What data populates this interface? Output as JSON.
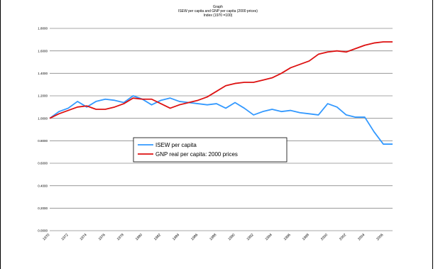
{
  "chart_data": {
    "type": "line",
    "title_lines": [
      "Graph",
      "ISEW per capita and GNP per capita (2000 prices)",
      "Index (1970 =100)"
    ],
    "x": [
      1970,
      1971,
      1972,
      1973,
      1974,
      1975,
      1976,
      1977,
      1978,
      1979,
      1980,
      1981,
      1982,
      1983,
      1984,
      1985,
      1986,
      1987,
      1988,
      1989,
      1990,
      1991,
      1992,
      1993,
      1994,
      1995,
      1996,
      1997,
      1998,
      1999,
      2000,
      2001,
      2002,
      2003,
      2004,
      2005,
      2006,
      2007
    ],
    "x_tick_labels": [
      "1970",
      "1972",
      "1974",
      "1976",
      "1978",
      "1980",
      "1982",
      "1984",
      "1986",
      "1988",
      "1990",
      "1992",
      "1994",
      "1996",
      "1998",
      "2000",
      "2002",
      "2004",
      "2006"
    ],
    "y_tick_labels": [
      "0.0000",
      "0.2000",
      "0.4000",
      "0.6000",
      "0.8000",
      "1.0000",
      "1.2000",
      "1.4000",
      "1.6000",
      "1.8000"
    ],
    "ylim": [
      0,
      1.8
    ],
    "grid": true,
    "legend_placement": "center-left",
    "series": [
      {
        "name": "ISEW per capita",
        "color": "#3399ff",
        "values": [
          1.0,
          1.06,
          1.09,
          1.15,
          1.1,
          1.15,
          1.17,
          1.16,
          1.14,
          1.2,
          1.17,
          1.12,
          1.16,
          1.18,
          1.15,
          1.14,
          1.13,
          1.12,
          1.13,
          1.09,
          1.14,
          1.09,
          1.03,
          1.06,
          1.08,
          1.06,
          1.07,
          1.05,
          1.04,
          1.03,
          1.13,
          1.1,
          1.03,
          1.01,
          1.01,
          0.88,
          0.77,
          0.77
        ]
      },
      {
        "name": "GNP real per capita: 2000 prices",
        "color": "#dd1111",
        "values": [
          1.0,
          1.04,
          1.07,
          1.1,
          1.11,
          1.08,
          1.08,
          1.1,
          1.13,
          1.18,
          1.17,
          1.17,
          1.13,
          1.09,
          1.12,
          1.14,
          1.16,
          1.19,
          1.24,
          1.29,
          1.31,
          1.32,
          1.32,
          1.34,
          1.36,
          1.4,
          1.45,
          1.48,
          1.51,
          1.57,
          1.59,
          1.6,
          1.59,
          1.62,
          1.65,
          1.67,
          1.68,
          1.68
        ]
      }
    ]
  }
}
